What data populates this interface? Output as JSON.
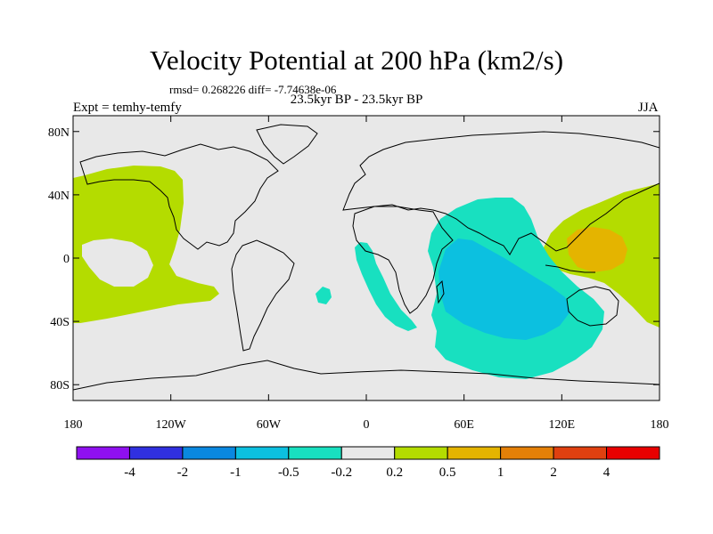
{
  "header": {
    "title": "Velocity Potential at 200 hPa (km2/s)",
    "stats": "rmsd= 0.268226 diff= -7.74638e-06",
    "experiment": "Expt = temhy-temfy",
    "period": "23.5kyr BP - 23.5kyr BP",
    "season": "JJA"
  },
  "map": {
    "lon_range": [
      -180,
      180
    ],
    "lat_range": [
      -90,
      90
    ],
    "x_ticks": [
      {
        "value": -180,
        "label": "180"
      },
      {
        "value": -120,
        "label": "120W"
      },
      {
        "value": -60,
        "label": "60W"
      },
      {
        "value": 0,
        "label": "0"
      },
      {
        "value": 60,
        "label": "60E"
      },
      {
        "value": 120,
        "label": "120E"
      },
      {
        "value": 180,
        "label": "180"
      }
    ],
    "y_ticks": [
      {
        "value": 80,
        "label": "80N"
      },
      {
        "value": 40,
        "label": "40N"
      },
      {
        "value": 0,
        "label": "0"
      },
      {
        "value": -40,
        "label": "40S"
      },
      {
        "value": -80,
        "label": "80S"
      }
    ],
    "background_color": "#e8e8e8",
    "coastline_color": "#000000"
  },
  "colorbar": {
    "labels": [
      "-4",
      "-2",
      "-1",
      "-0.5",
      "-0.2",
      "0.2",
      "0.5",
      "1",
      "2",
      "4"
    ],
    "colors": [
      "#8f10f0",
      "#3030e0",
      "#0a88e0",
      "#0cc0e0",
      "#18e0c0",
      "#e8e8e8",
      "#b4dc00",
      "#e4b400",
      "#e48008",
      "#e04010",
      "#e80000"
    ]
  }
}
